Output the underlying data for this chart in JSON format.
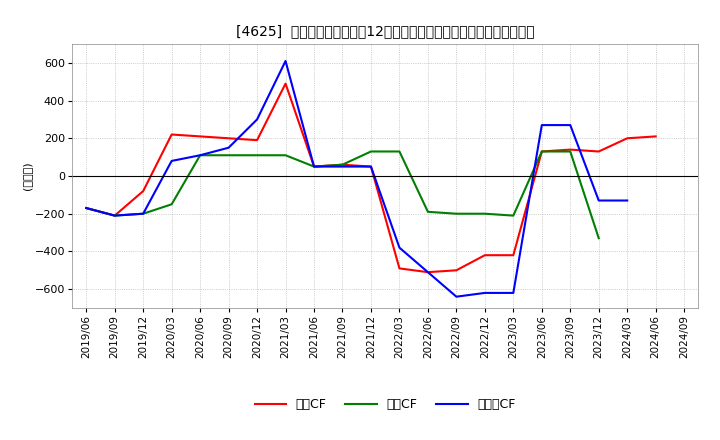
{
  "title": "[4625]  キャッシュフローの12か月移動合計の対前年同期増減額の推移",
  "ylabel": "(百万円)",
  "ylim": [
    -700,
    700
  ],
  "yticks": [
    -600,
    -400,
    -200,
    0,
    200,
    400,
    600
  ],
  "legend_labels": [
    "営業CF",
    "投資CF",
    "フリーCF"
  ],
  "colors": {
    "eigyo": "#ff0000",
    "toshi": "#008000",
    "free": "#0000ff"
  },
  "dates": [
    "2019/06",
    "2019/09",
    "2019/12",
    "2020/03",
    "2020/06",
    "2020/09",
    "2020/12",
    "2021/03",
    "2021/06",
    "2021/09",
    "2021/12",
    "2022/03",
    "2022/06",
    "2022/09",
    "2022/12",
    "2023/03",
    "2023/06",
    "2023/09",
    "2023/12",
    "2024/03",
    "2024/06",
    "2024/09"
  ],
  "eigyo": [
    -170,
    -210,
    -80,
    220,
    210,
    200,
    190,
    490,
    50,
    60,
    50,
    -490,
    -510,
    -500,
    -420,
    -420,
    130,
    140,
    130,
    200,
    210,
    null
  ],
  "toshi": [
    -170,
    -210,
    -200,
    -150,
    110,
    110,
    110,
    110,
    50,
    60,
    130,
    130,
    -190,
    -200,
    -200,
    -210,
    130,
    130,
    -330,
    null,
    null,
    null
  ],
  "free": [
    -170,
    -210,
    -200,
    80,
    110,
    150,
    300,
    610,
    50,
    50,
    50,
    -380,
    -510,
    -640,
    -620,
    -620,
    270,
    270,
    -130,
    -130,
    null,
    null
  ],
  "background_color": "#ffffff",
  "grid_color": "#aaaaaa"
}
